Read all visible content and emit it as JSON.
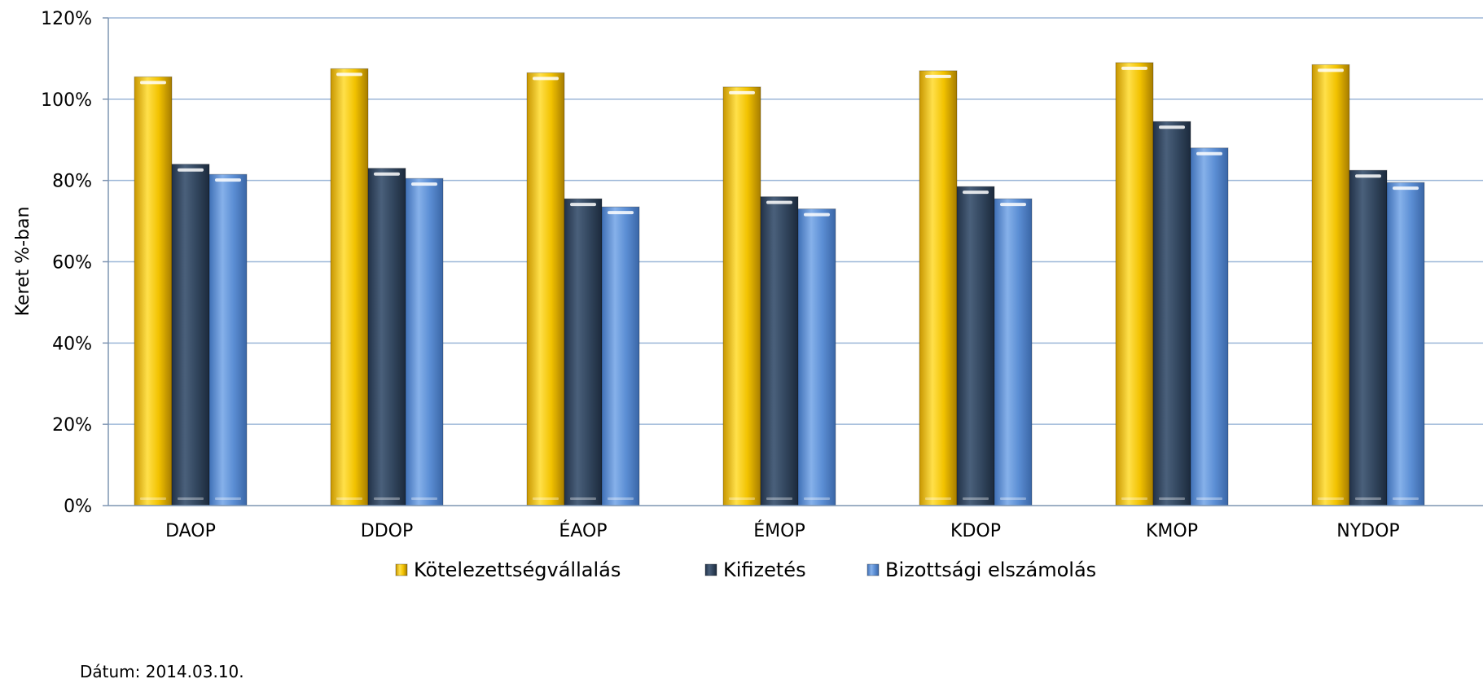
{
  "chart_data": {
    "type": "bar",
    "title": "",
    "xlabel": "",
    "ylabel": "Keret %-ban",
    "ylim": [
      0,
      120
    ],
    "yticks": [
      "0%",
      "20%",
      "40%",
      "60%",
      "80%",
      "100%",
      "120%"
    ],
    "categories": [
      "DAOP",
      "DDOP",
      "ÉAOP",
      "ÉMOP",
      "KDOP",
      "KMOP",
      "NYDOP"
    ],
    "series": [
      {
        "name": "Kötelezettségvállalás",
        "color": "#F2C200",
        "values": [
          105.5,
          107.5,
          106.5,
          103,
          107,
          109,
          108.5
        ]
      },
      {
        "name": "Kifizetés",
        "color": "#33475F",
        "values": [
          84,
          83,
          75.5,
          76,
          78.5,
          94.5,
          82.5
        ]
      },
      {
        "name": "Bizottsági elszámolás",
        "color": "#5B8ED4",
        "values": [
          81.5,
          80.5,
          73.5,
          73,
          75.5,
          88,
          79.5
        ]
      }
    ],
    "grid": true,
    "legend": "bottom",
    "footnote": "Dátum: 2014.03.10."
  }
}
